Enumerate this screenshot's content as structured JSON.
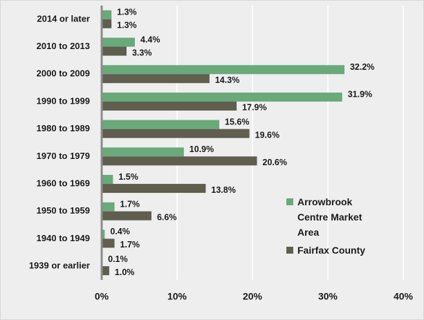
{
  "chart_data": {
    "type": "hbar",
    "categories": [
      "2014 or later",
      "2010 to 2013",
      "2000 to 2009",
      "1990 to 1999",
      "1980 to 1989",
      "1970 to 1979",
      "1960 to 1969",
      "1950 to 1959",
      "1940 to 1949",
      "1939 or earlier"
    ],
    "series": [
      {
        "name": "Arrowbrook Centre Market Area",
        "color": "#6aa97a",
        "values": [
          1.3,
          4.4,
          32.2,
          31.9,
          15.6,
          10.9,
          1.5,
          1.7,
          0.4,
          0.1
        ],
        "value_labels": [
          "1.3%",
          "4.4%",
          "32.2%",
          "31.9%",
          "15.6%",
          "10.9%",
          "1.5%",
          "1.7%",
          "0.4%",
          "0.1%"
        ]
      },
      {
        "name": "Fairfax County",
        "color": "#5f5e4f",
        "values": [
          1.3,
          3.3,
          14.3,
          17.9,
          19.6,
          20.6,
          13.8,
          6.6,
          1.7,
          1.0
        ],
        "value_labels": [
          "1.3%",
          "3.3%",
          "14.3%",
          "17.9%",
          "19.6%",
          "20.6%",
          "13.8%",
          "6.6%",
          "1.7%",
          "1.0%"
        ]
      }
    ],
    "xlim": [
      0,
      40
    ],
    "xticks": [
      {
        "value": 0,
        "label": "0%"
      },
      {
        "value": 10,
        "label": "10%"
      },
      {
        "value": 20,
        "label": "20%"
      },
      {
        "value": 30,
        "label": "30%"
      },
      {
        "value": 40,
        "label": "40%"
      }
    ],
    "grid": true,
    "legend": "lower right"
  }
}
